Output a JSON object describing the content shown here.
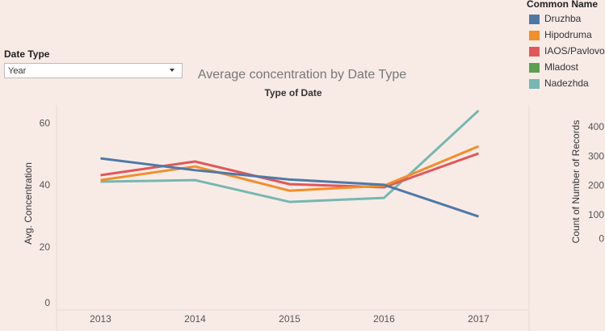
{
  "chart_data": {
    "type": "line",
    "title": "Average concentration by Date Type",
    "subtitle": "Type of Date",
    "y_label": "Avg. Concentration",
    "y2_label": "Count of Number of Records",
    "legend_title": "Common Name",
    "legend": "right",
    "grid": false,
    "filter": {
      "label": "Date Type",
      "value": "Year"
    },
    "categories": [
      "2013",
      "2014",
      "2015",
      "2016",
      "2017"
    ],
    "series": [
      {
        "name": "Druzhba",
        "color": "#4e79a7",
        "values": [
          48.8,
          45,
          42,
          40.3,
          30.1
        ]
      },
      {
        "name": "Hipodruma",
        "color": "#f28e2b",
        "values": [
          41.8,
          46.2,
          38.4,
          40,
          52.7
        ]
      },
      {
        "name": "IAOS/Pavlovo",
        "color": "#e15759",
        "values": [
          43.4,
          47.8,
          40.5,
          39.5,
          50.4
        ]
      },
      {
        "name": "Mladost",
        "color": "#59a14f",
        "values": [
          null,
          null,
          null,
          null,
          null
        ]
      },
      {
        "name": "Nadezhda",
        "color": "#76b7b2",
        "values": [
          41.3,
          41.8,
          34.8,
          36.1,
          64.2
        ]
      }
    ],
    "ylim": [
      0,
      66
    ],
    "yticks": [
      0,
      20,
      40,
      60
    ],
    "y2lim": [
      -223,
      477
    ],
    "y2ticks": [
      0,
      100,
      200,
      300,
      400
    ]
  }
}
